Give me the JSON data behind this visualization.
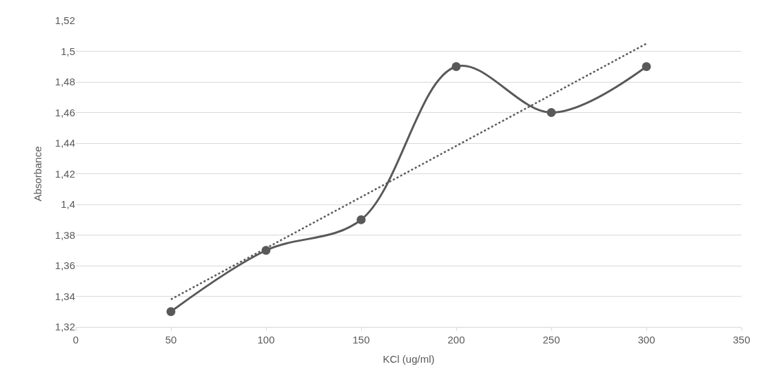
{
  "chart_data": {
    "type": "line",
    "xlabel": "KCl (ug/ml)",
    "ylabel": "Absorbance",
    "x": [
      50,
      100,
      150,
      200,
      250,
      300
    ],
    "series": [
      {
        "color": "#595959",
        "values": [
          1.33,
          1.37,
          1.39,
          1.49,
          1.46,
          1.49
        ],
        "marker": "circle",
        "line_style": "solid"
      },
      {
        "color": "#595959",
        "x": [
          50,
          300
        ],
        "values": [
          1.338,
          1.505
        ],
        "marker": "none",
        "line_style": "dotted"
      }
    ],
    "xlim": [
      0,
      350
    ],
    "xticks": [
      0,
      50,
      100,
      150,
      200,
      250,
      300,
      350
    ],
    "ylim": [
      1.32,
      1.52
    ],
    "yticks": [
      {
        "value": 1.32,
        "label": "1,32"
      },
      {
        "value": 1.34,
        "label": "1,34"
      },
      {
        "value": 1.36,
        "label": "1,36"
      },
      {
        "value": 1.38,
        "label": "1,38"
      },
      {
        "value": 1.4,
        "label": "1,4"
      },
      {
        "value": 1.42,
        "label": "1,42"
      },
      {
        "value": 1.44,
        "label": "1,44"
      },
      {
        "value": 1.46,
        "label": "1,46"
      },
      {
        "value": 1.48,
        "label": "1,48"
      },
      {
        "value": 1.5,
        "label": "1,5"
      },
      {
        "value": 1.52,
        "label": "1,52"
      }
    ],
    "grid": "y"
  }
}
